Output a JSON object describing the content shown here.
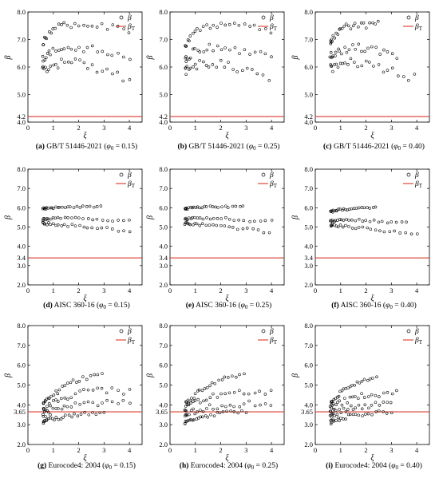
{
  "figure": {
    "legend": {
      "beta": "β",
      "beta_t": "β",
      "beta_t_sub": "T"
    },
    "colors": {
      "threshold": "#d93a2b",
      "marker": "#000000",
      "axis": "#000000"
    }
  },
  "chart_data": [
    {
      "id": "a",
      "type": "scatter",
      "caption_letter": "(a)",
      "code": "GB/T 51446-2021",
      "phi": "0.15",
      "xlabel": "ξ",
      "ylabel": "β",
      "xlim": [
        0,
        4.5
      ],
      "ylim": [
        4.0,
        8.0
      ],
      "xticks": [
        "0",
        "1",
        "2",
        "3",
        "4"
      ],
      "yticks": [
        "4.0",
        "4.2",
        "5.0",
        "6.0",
        "7.0",
        "8.0"
      ],
      "threshold": 4.2,
      "legend_position": "top-right",
      "bands": [
        {
          "x": [
            0.6,
            1.0,
            1.5,
            2.0,
            2.5,
            3.0,
            3.5,
            4.0
          ],
          "y": [
            6.9,
            7.4,
            7.55,
            7.55,
            7.5,
            7.45,
            7.4,
            7.35
          ],
          "spread": 0.12
        },
        {
          "x": [
            0.6,
            1.0,
            1.5,
            2.0,
            2.5,
            3.0,
            3.5,
            4.0
          ],
          "y": [
            6.3,
            6.6,
            6.7,
            6.7,
            6.65,
            6.6,
            6.5,
            6.4
          ],
          "spread": 0.14
        },
        {
          "x": [
            0.6,
            1.0,
            1.5,
            2.0,
            2.5,
            3.0,
            3.5,
            4.0
          ],
          "y": [
            5.9,
            6.1,
            6.15,
            6.1,
            6.0,
            5.85,
            5.7,
            5.5
          ],
          "spread": 0.18
        }
      ]
    },
    {
      "id": "b",
      "type": "scatter",
      "caption_letter": "(b)",
      "code": "GB/T 51446-2021",
      "phi": "0.25",
      "xlabel": "ξ",
      "ylabel": "β",
      "xlim": [
        0,
        4.5
      ],
      "ylim": [
        4.0,
        8.0
      ],
      "xticks": [
        "0",
        "1",
        "2",
        "3",
        "4"
      ],
      "yticks": [
        "4.0",
        "4.2",
        "5.0",
        "6.0",
        "7.0",
        "8.0"
      ],
      "threshold": 4.2,
      "legend_position": "top-right",
      "bands": [
        {
          "x": [
            0.6,
            1.0,
            1.5,
            2.0,
            2.5,
            3.0,
            3.5,
            4.0
          ],
          "y": [
            6.8,
            7.3,
            7.5,
            7.55,
            7.5,
            7.45,
            7.4,
            7.35
          ],
          "spread": 0.12
        },
        {
          "x": [
            0.6,
            1.0,
            1.5,
            2.0,
            2.5,
            3.0,
            3.5,
            4.0
          ],
          "y": [
            6.3,
            6.6,
            6.7,
            6.7,
            6.65,
            6.6,
            6.55,
            6.5
          ],
          "spread": 0.14
        },
        {
          "x": [
            0.6,
            1.0,
            1.5,
            2.0,
            2.5,
            3.0,
            3.5,
            3.9
          ],
          "y": [
            5.85,
            6.1,
            6.15,
            6.1,
            6.0,
            5.85,
            5.7,
            5.6
          ],
          "spread": 0.18
        }
      ]
    },
    {
      "id": "c",
      "type": "scatter",
      "caption_letter": "(c)",
      "code": "GB/T 51446-2021",
      "phi": "0.40",
      "xlabel": "ξ",
      "ylabel": "β",
      "xlim": [
        0,
        4.5
      ],
      "ylim": [
        4.0,
        8.0
      ],
      "xticks": [
        "0",
        "1",
        "2",
        "3",
        "4"
      ],
      "yticks": [
        "4.0",
        "4.2",
        "5.0",
        "6.0",
        "7.0",
        "8.0"
      ],
      "threshold": 4.2,
      "legend_position": "top-right",
      "bands": [
        {
          "x": [
            0.6,
            0.8,
            1.0,
            1.2,
            1.5,
            1.8,
            2.0,
            2.5
          ],
          "y": [
            6.9,
            7.2,
            7.35,
            7.45,
            7.5,
            7.5,
            7.5,
            7.55
          ],
          "spread": 0.12
        },
        {
          "x": [
            0.6,
            1.0,
            1.5,
            2.0,
            2.5,
            3.0,
            3.2
          ],
          "y": [
            6.4,
            6.6,
            6.7,
            6.7,
            6.6,
            6.5,
            6.45
          ],
          "spread": 0.14
        },
        {
          "x": [
            0.6,
            1.0,
            1.5,
            2.0,
            2.5,
            3.0,
            3.5,
            3.9
          ],
          "y": [
            5.95,
            6.1,
            6.15,
            6.1,
            6.0,
            5.85,
            5.7,
            5.6
          ],
          "spread": 0.18
        }
      ]
    },
    {
      "id": "d",
      "type": "scatter",
      "caption_letter": "(d)",
      "code": "AISC 360-16",
      "phi": "0.15",
      "xlabel": "ξ",
      "ylabel": "β",
      "xlim": [
        0,
        4.5
      ],
      "ylim": [
        2.0,
        8.0
      ],
      "xticks": [
        "0",
        "1",
        "2",
        "3",
        "4"
      ],
      "yticks": [
        "2.0",
        "3.0",
        "3.4",
        "4.0",
        "5.0",
        "6.0",
        "7.0",
        "8.0"
      ],
      "threshold": 3.4,
      "legend_position": "top-right",
      "bands": [
        {
          "x": [
            0.6,
            1.0,
            1.5,
            2.0,
            2.5,
            2.9
          ],
          "y": [
            5.95,
            6.0,
            6.05,
            6.05,
            6.05,
            6.05
          ],
          "spread": 0.05
        },
        {
          "x": [
            0.6,
            1.0,
            1.5,
            2.0,
            2.5,
            3.0,
            3.5,
            4.0
          ],
          "y": [
            5.4,
            5.45,
            5.45,
            5.45,
            5.4,
            5.4,
            5.35,
            5.3
          ],
          "spread": 0.06
        },
        {
          "x": [
            0.6,
            1.0,
            1.5,
            2.0,
            2.5,
            3.0,
            3.5,
            4.0
          ],
          "y": [
            5.2,
            5.15,
            5.1,
            5.05,
            5.0,
            4.95,
            4.85,
            4.75
          ],
          "spread": 0.07
        }
      ]
    },
    {
      "id": "e",
      "type": "scatter",
      "caption_letter": "(e)",
      "code": "AISC 360-16",
      "phi": "0.25",
      "xlabel": "ξ",
      "ylabel": "β",
      "xlim": [
        0,
        4.5
      ],
      "ylim": [
        2.0,
        8.0
      ],
      "xticks": [
        "0",
        "1",
        "2",
        "3",
        "4"
      ],
      "yticks": [
        "2.0",
        "3.0",
        "3.4",
        "4.0",
        "5.0",
        "6.0",
        "7.0",
        "8.0"
      ],
      "threshold": 3.4,
      "legend_position": "top-right",
      "bands": [
        {
          "x": [
            0.6,
            1.0,
            1.5,
            2.0,
            2.5,
            2.9
          ],
          "y": [
            5.95,
            6.0,
            6.05,
            6.05,
            6.05,
            6.05
          ],
          "spread": 0.05
        },
        {
          "x": [
            0.6,
            1.0,
            1.5,
            2.0,
            2.5,
            3.0,
            3.5,
            4.0
          ],
          "y": [
            5.4,
            5.45,
            5.45,
            5.45,
            5.4,
            5.35,
            5.3,
            5.3
          ],
          "spread": 0.06
        },
        {
          "x": [
            0.6,
            1.0,
            1.5,
            2.0,
            2.5,
            3.0,
            3.5,
            3.9
          ],
          "y": [
            5.2,
            5.15,
            5.1,
            5.05,
            4.95,
            4.9,
            4.8,
            4.75
          ],
          "spread": 0.07
        }
      ]
    },
    {
      "id": "f",
      "type": "scatter",
      "caption_letter": "(f)",
      "code": "AISC 360-16",
      "phi": "0.40",
      "xlabel": "ξ",
      "ylabel": "β",
      "xlim": [
        0,
        4.5
      ],
      "ylim": [
        2.0,
        8.0
      ],
      "xticks": [
        "0",
        "1",
        "2",
        "3",
        "4"
      ],
      "yticks": [
        "2.0",
        "3.0",
        "3.4",
        "4.0",
        "5.0",
        "6.0",
        "7.0",
        "8.0"
      ],
      "threshold": 3.4,
      "legend_position": "top-right",
      "bands": [
        {
          "x": [
            0.6,
            0.8,
            1.0,
            1.5,
            2.0,
            2.4
          ],
          "y": [
            5.8,
            5.85,
            5.9,
            5.95,
            6.0,
            6.0
          ],
          "spread": 0.05
        },
        {
          "x": [
            0.6,
            1.0,
            1.5,
            2.0,
            2.5,
            3.0,
            3.6
          ],
          "y": [
            5.3,
            5.35,
            5.35,
            5.35,
            5.3,
            5.25,
            5.2
          ],
          "spread": 0.06
        },
        {
          "x": [
            0.6,
            1.0,
            1.5,
            2.0,
            2.5,
            3.0,
            3.5,
            4.0
          ],
          "y": [
            5.1,
            5.05,
            5.0,
            4.95,
            4.85,
            4.75,
            4.7,
            4.6
          ],
          "spread": 0.07
        }
      ]
    },
    {
      "id": "g",
      "type": "scatter",
      "caption_letter": "(g)",
      "code": "Eurocode4: 2004",
      "phi": "0.15",
      "xlabel": "ξ",
      "ylabel": "β",
      "xlim": [
        0,
        4.5
      ],
      "ylim": [
        2.0,
        8.0
      ],
      "xticks": [
        "0",
        "1",
        "2",
        "3",
        "4"
      ],
      "yticks": [
        "2.0",
        "3.0",
        "3.65",
        "4.0",
        "5.0",
        "6.0",
        "7.0",
        "8.0"
      ],
      "threshold": 3.65,
      "legend_position": "top-right",
      "bands": [
        {
          "x": [
            0.6,
            1.0,
            1.5,
            2.0,
            2.5,
            2.9
          ],
          "y": [
            4.0,
            4.5,
            5.0,
            5.3,
            5.45,
            5.5
          ],
          "spread": 0.12
        },
        {
          "x": [
            0.6,
            1.0,
            1.5,
            2.0,
            2.5,
            3.0,
            3.5,
            4.0
          ],
          "y": [
            3.8,
            4.1,
            4.4,
            4.6,
            4.7,
            4.75,
            4.7,
            4.65
          ],
          "spread": 0.15
        },
        {
          "x": [
            0.6,
            1.0,
            1.5,
            2.0,
            2.5,
            3.0,
            3.5,
            4.0
          ],
          "y": [
            3.5,
            3.7,
            3.9,
            4.0,
            4.05,
            4.1,
            4.1,
            4.1
          ],
          "spread": 0.15
        },
        {
          "x": [
            0.6,
            1.0,
            1.5,
            2.0,
            2.5,
            3.0
          ],
          "y": [
            3.1,
            3.3,
            3.45,
            3.55,
            3.6,
            3.65
          ],
          "spread": 0.12
        }
      ]
    },
    {
      "id": "h",
      "type": "scatter",
      "caption_letter": "(h)",
      "code": "Eurocode4: 2004",
      "phi": "0.25",
      "xlabel": "ξ",
      "ylabel": "β",
      "xlim": [
        0,
        4.5
      ],
      "ylim": [
        2.0,
        8.0
      ],
      "xticks": [
        "0",
        "1",
        "2",
        "3",
        "4"
      ],
      "yticks": [
        "2.0",
        "3.0",
        "3.65",
        "4.0",
        "5.0",
        "6.0",
        "7.0",
        "8.0"
      ],
      "threshold": 3.65,
      "legend_position": "top-right",
      "bands": [
        {
          "x": [
            0.6,
            1.0,
            1.5,
            2.0,
            2.5,
            2.9
          ],
          "y": [
            4.0,
            4.5,
            5.0,
            5.3,
            5.45,
            5.5
          ],
          "spread": 0.12
        },
        {
          "x": [
            0.6,
            1.0,
            1.5,
            2.0,
            2.5,
            3.0,
            3.5,
            4.0
          ],
          "y": [
            3.8,
            4.1,
            4.35,
            4.55,
            4.65,
            4.7,
            4.65,
            4.6
          ],
          "spread": 0.15
        },
        {
          "x": [
            0.6,
            1.0,
            1.5,
            2.0,
            2.5,
            3.0,
            3.5,
            4.0
          ],
          "y": [
            3.5,
            3.7,
            3.85,
            3.95,
            4.0,
            4.05,
            4.1,
            4.1
          ],
          "spread": 0.15
        },
        {
          "x": [
            0.6,
            1.0,
            1.5,
            2.0,
            2.5,
            3.0
          ],
          "y": [
            3.1,
            3.3,
            3.45,
            3.55,
            3.6,
            3.65
          ],
          "spread": 0.12
        }
      ]
    },
    {
      "id": "i",
      "type": "scatter",
      "caption_letter": "(i)",
      "code": "Eurocode4: 2004",
      "phi": "0.40",
      "xlabel": "ξ",
      "ylabel": "β",
      "xlim": [
        0,
        4.5
      ],
      "ylim": [
        2.0,
        8.0
      ],
      "xticks": [
        "0",
        "1",
        "2",
        "3",
        "4"
      ],
      "yticks": [
        "2.0",
        "3.0",
        "3.65",
        "4.0",
        "5.0",
        "6.0",
        "7.0",
        "8.0"
      ],
      "threshold": 3.65,
      "legend_position": "top-right",
      "bands": [
        {
          "x": [
            0.6,
            1.0,
            1.5,
            2.0,
            2.4
          ],
          "y": [
            4.0,
            4.6,
            5.0,
            5.2,
            5.35
          ],
          "spread": 0.12
        },
        {
          "x": [
            0.6,
            1.0,
            1.5,
            2.0,
            2.5,
            3.0,
            3.2
          ],
          "y": [
            3.8,
            4.1,
            4.35,
            4.5,
            4.55,
            4.6,
            4.6
          ],
          "spread": 0.15
        },
        {
          "x": [
            0.6,
            1.0,
            1.5,
            2.0,
            2.5,
            3.0
          ],
          "y": [
            3.5,
            3.7,
            3.85,
            3.95,
            4.0,
            4.05
          ],
          "spread": 0.15
        },
        {
          "x": [
            0.6,
            1.0,
            1.5,
            2.0,
            2.5,
            3.0
          ],
          "y": [
            3.1,
            3.3,
            3.45,
            3.55,
            3.6,
            3.65
          ],
          "spread": 0.12
        }
      ]
    }
  ]
}
